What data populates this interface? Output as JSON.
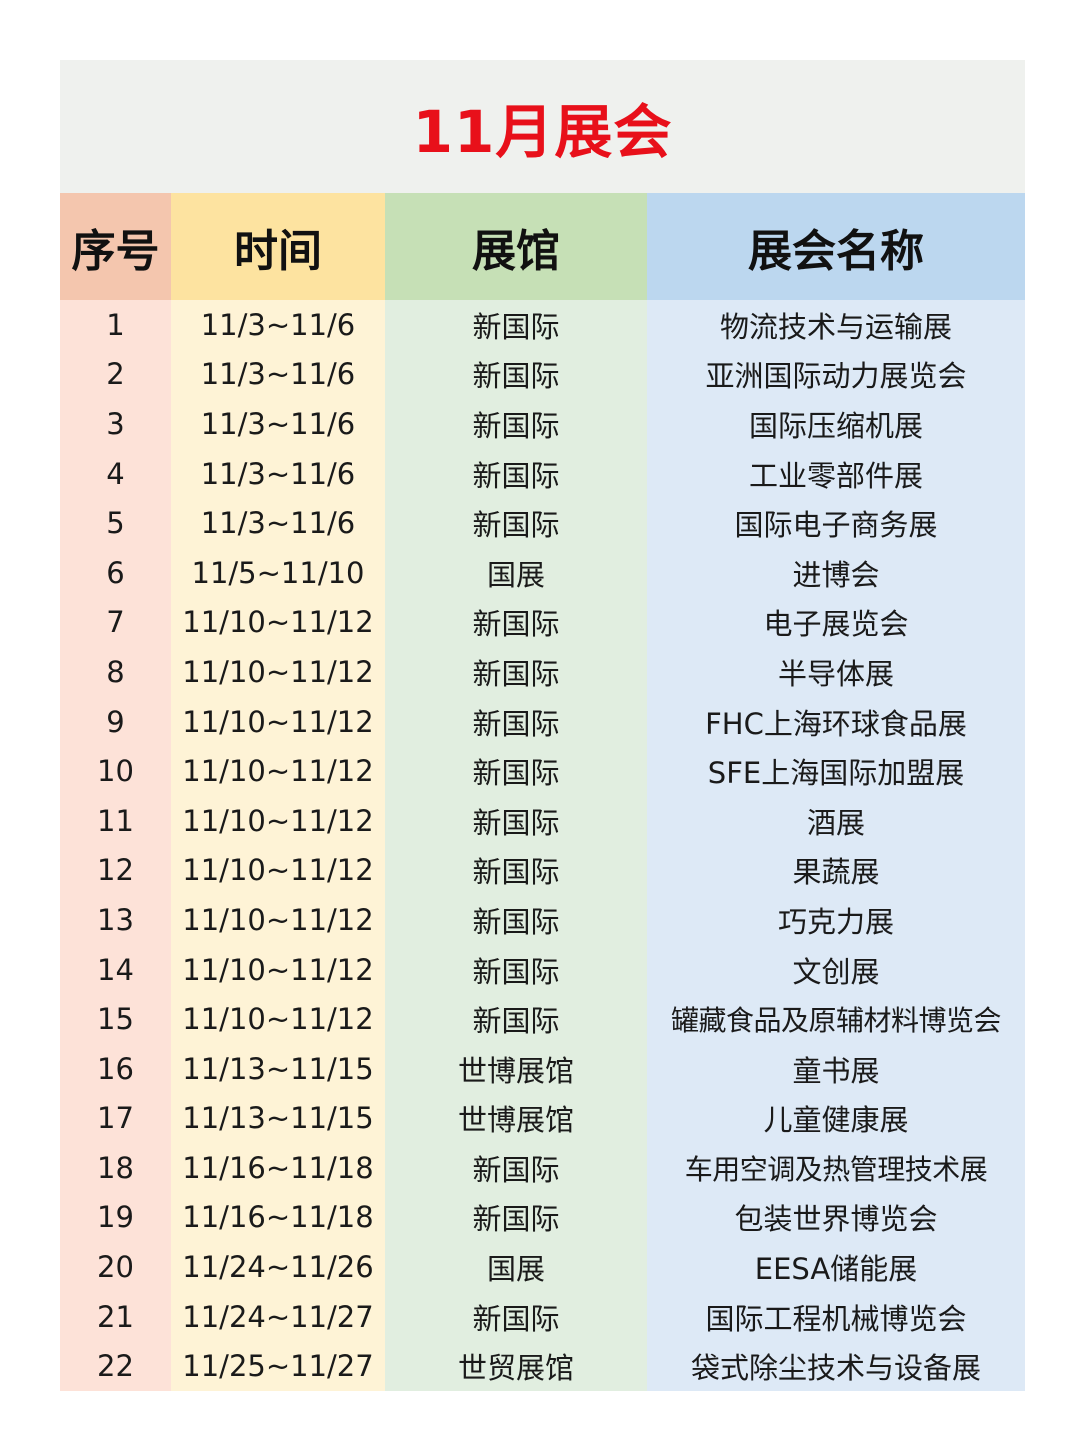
{
  "title": "11月展会",
  "colors": {
    "title": "#e8101a",
    "header": [
      "#f4c6ae",
      "#fde3a0",
      "#c6e0b6",
      "#bcd7ef"
    ],
    "body": [
      "#fde2d8",
      "#fef3d6",
      "#e1eee0",
      "#dde9f6"
    ]
  },
  "headers": [
    "序号",
    "时间",
    "展馆",
    "展会名称"
  ],
  "rows": [
    [
      "1",
      "11/3~11/6",
      "新国际",
      "物流技术与运输展"
    ],
    [
      "2",
      "11/3~11/6",
      "新国际",
      "亚洲国际动力展览会"
    ],
    [
      "3",
      "11/3~11/6",
      "新国际",
      "国际压缩机展"
    ],
    [
      "4",
      "11/3~11/6",
      "新国际",
      "工业零部件展"
    ],
    [
      "5",
      "11/3~11/6",
      "新国际",
      "国际电子商务展"
    ],
    [
      "6",
      "11/5~11/10",
      "国展",
      "进博会"
    ],
    [
      "7",
      "11/10~11/12",
      "新国际",
      "电子展览会"
    ],
    [
      "8",
      "11/10~11/12",
      "新国际",
      "半导体展"
    ],
    [
      "9",
      "11/10~11/12",
      "新国际",
      "FHC上海环球食品展"
    ],
    [
      "10",
      "11/10~11/12",
      "新国际",
      "SFE上海国际加盟展"
    ],
    [
      "11",
      "11/10~11/12",
      "新国际",
      "酒展"
    ],
    [
      "12",
      "11/10~11/12",
      "新国际",
      "果蔬展"
    ],
    [
      "13",
      "11/10~11/12",
      "新国际",
      "巧克力展"
    ],
    [
      "14",
      "11/10~11/12",
      "新国际",
      "文创展"
    ],
    [
      "15",
      "11/10~11/12",
      "新国际",
      "罐藏食品及原辅材料博览会"
    ],
    [
      "16",
      "11/13~11/15",
      "世博展馆",
      "童书展"
    ],
    [
      "17",
      "11/13~11/15",
      "世博展馆",
      "儿童健康展"
    ],
    [
      "18",
      "11/16~11/18",
      "新国际",
      "车用空调及热管理技术展"
    ],
    [
      "19",
      "11/16~11/18",
      "新国际",
      "包装世界博览会"
    ],
    [
      "20",
      "11/24~11/26",
      "国展",
      "EESA储能展"
    ],
    [
      "21",
      "11/24~11/27",
      "新国际",
      "国际工程机械博览会"
    ],
    [
      "22",
      "11/25~11/27",
      "世贸展馆",
      "袋式除尘技术与设备展"
    ]
  ]
}
